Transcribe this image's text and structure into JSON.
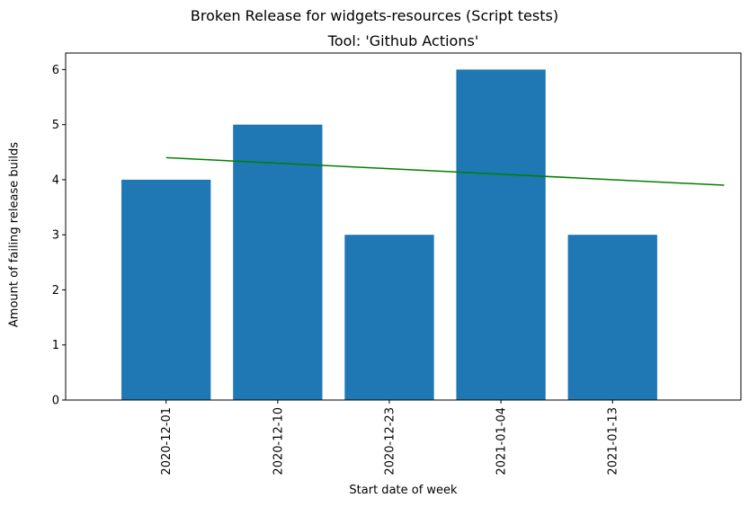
{
  "chart_data": {
    "type": "bar",
    "suptitle": "Broken Release for widgets-resources (Script tests)",
    "title": "Tool: 'Github Actions'",
    "xlabel": "Start date of week",
    "ylabel": "Amount of failing release builds",
    "categories": [
      "2020-12-01",
      "2020-12-10",
      "2020-12-23",
      "2021-01-04",
      "2021-01-13"
    ],
    "values": [
      4,
      5,
      3,
      6,
      3
    ],
    "ylim": [
      0,
      6.3
    ],
    "yticks": [
      0,
      1,
      2,
      3,
      4,
      5,
      6
    ],
    "bar_color": "#1f77b4",
    "trend": {
      "color": "#008000",
      "x": [
        "2020-12-01",
        "2021-01-25"
      ],
      "y": [
        4.4,
        3.9
      ]
    },
    "grid": false,
    "legend": "none"
  }
}
